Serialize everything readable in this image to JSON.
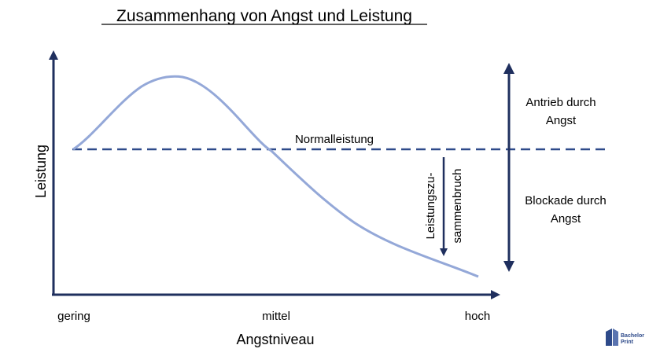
{
  "title": "Zusammenhang von Angst und Leistung",
  "axes": {
    "y_label": "Leistung",
    "x_label": "Angstniveau",
    "x_ticks": [
      "gering",
      "mittel",
      "hoch"
    ]
  },
  "annotations": {
    "normal_line_label": "Normalleistung",
    "collapse_label_line1": "Leistungszu-",
    "collapse_label_line2": "sammenbruch",
    "drive_label_line1": "Antrieb durch",
    "drive_label_line2": "Angst",
    "block_label_line1": "Blockade durch",
    "block_label_line2": "Angst"
  },
  "logo": {
    "line1": "Bachelor",
    "line2": "Print"
  },
  "colors": {
    "axis": "#1f2f5e",
    "curve": "#94a8d8",
    "dashed_line": "#2e4a8a",
    "text": "#000000"
  }
}
